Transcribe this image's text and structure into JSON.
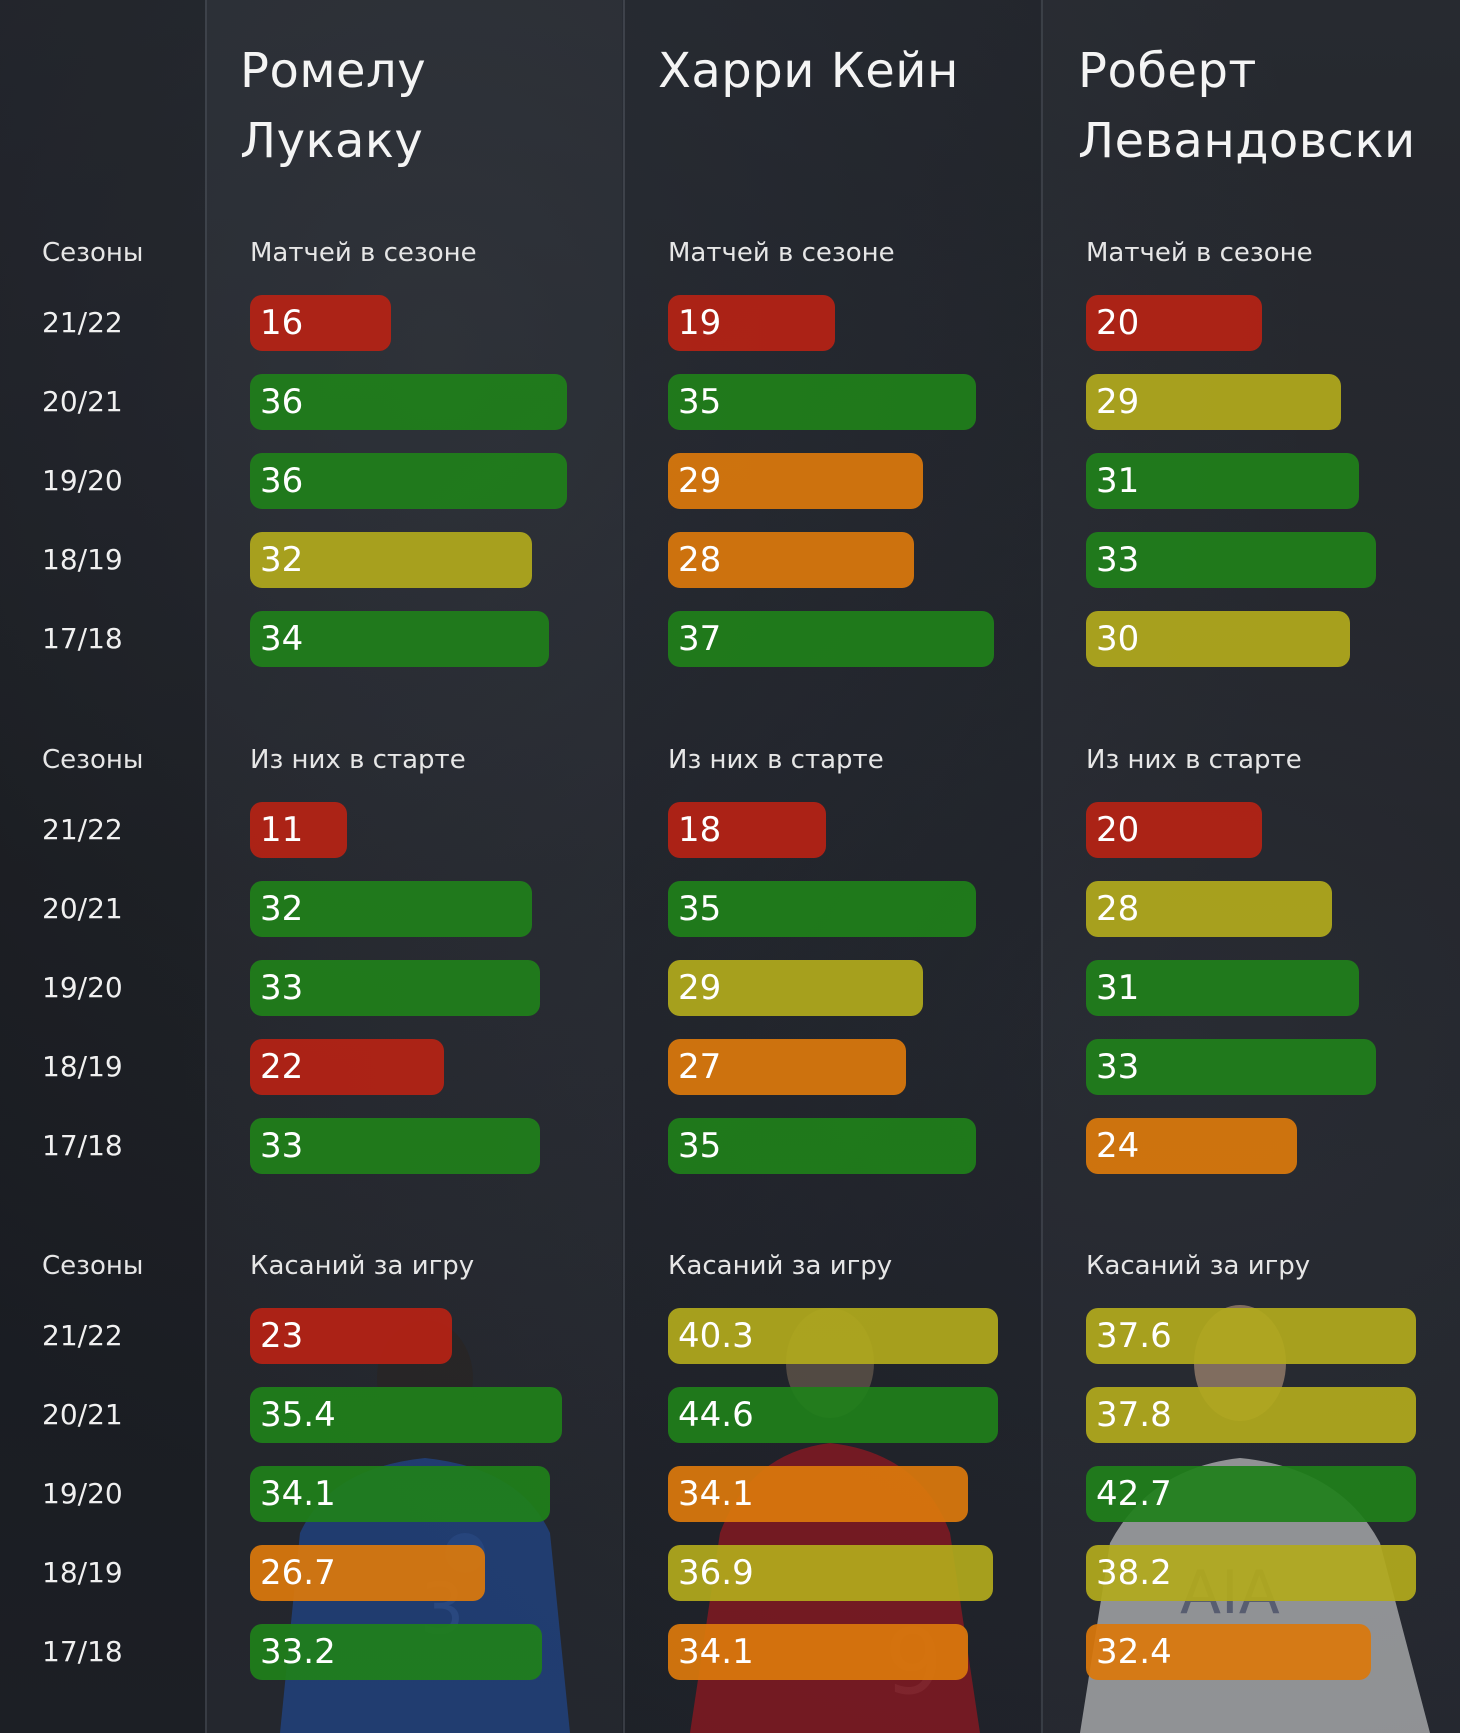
{
  "players": [
    {
      "name": "Ромелу\nЛукаку"
    },
    {
      "name": "Харри Кейн"
    },
    {
      "name": "Роберт\nЛевандовски"
    }
  ],
  "seasons_label": "Сезоны",
  "seasons": [
    "21/22",
    "20/21",
    "19/20",
    "18/19",
    "17/18"
  ],
  "colors": {
    "red": "#b62214",
    "green": "#20801a",
    "yellow": "#b2aa1c",
    "orange": "#da780c"
  },
  "chart_data": [
    {
      "type": "bar",
      "title": "Матчей в сезоне",
      "categories": [
        "21/22",
        "20/21",
        "19/20",
        "18/19",
        "17/18"
      ],
      "series": [
        {
          "name": "Ромелу Лукаку",
          "values": [
            "16",
            "36",
            "36",
            "32",
            "34"
          ],
          "colors": [
            "red",
            "green",
            "green",
            "yellow",
            "green"
          ]
        },
        {
          "name": "Харри Кейн",
          "values": [
            "19",
            "35",
            "29",
            "28",
            "37"
          ],
          "colors": [
            "red",
            "green",
            "orange",
            "orange",
            "green"
          ]
        },
        {
          "name": "Роберт Левандовски",
          "values": [
            "20",
            "29",
            "31",
            "33",
            "30"
          ],
          "colors": [
            "red",
            "yellow",
            "green",
            "green",
            "yellow"
          ]
        }
      ]
    },
    {
      "type": "bar",
      "title": "Из них в старте",
      "categories": [
        "21/22",
        "20/21",
        "19/20",
        "18/19",
        "17/18"
      ],
      "series": [
        {
          "name": "Ромелу Лукаку",
          "values": [
            "11",
            "32",
            "33",
            "22",
            "33"
          ],
          "colors": [
            "red",
            "green",
            "green",
            "red",
            "green"
          ]
        },
        {
          "name": "Харри Кейн",
          "values": [
            "18",
            "35",
            "29",
            "27",
            "35"
          ],
          "colors": [
            "red",
            "green",
            "yellow",
            "orange",
            "green"
          ]
        },
        {
          "name": "Роберт Левандовски",
          "values": [
            "20",
            "28",
            "31",
            "33",
            "24"
          ],
          "colors": [
            "red",
            "yellow",
            "green",
            "green",
            "orange"
          ]
        }
      ]
    },
    {
      "type": "bar",
      "title": "Касаний за игру",
      "categories": [
        "21/22",
        "20/21",
        "19/20",
        "18/19",
        "17/18"
      ],
      "series": [
        {
          "name": "Ромелу Лукаку",
          "values": [
            "23",
            "35.4",
            "34.1",
            "26.7",
            "33.2"
          ],
          "colors": [
            "red",
            "green",
            "green",
            "orange",
            "green"
          ]
        },
        {
          "name": "Харри Кейн",
          "values": [
            "40.3",
            "44.6",
            "34.1",
            "36.9",
            "34.1"
          ],
          "colors": [
            "yellow",
            "green",
            "orange",
            "yellow",
            "orange"
          ]
        },
        {
          "name": "Роберт Левандовски",
          "values": [
            "37.6",
            "37.8",
            "42.7",
            "38.2",
            "32.4"
          ],
          "colors": [
            "yellow",
            "yellow",
            "green",
            "yellow",
            "orange"
          ]
        }
      ]
    }
  ]
}
